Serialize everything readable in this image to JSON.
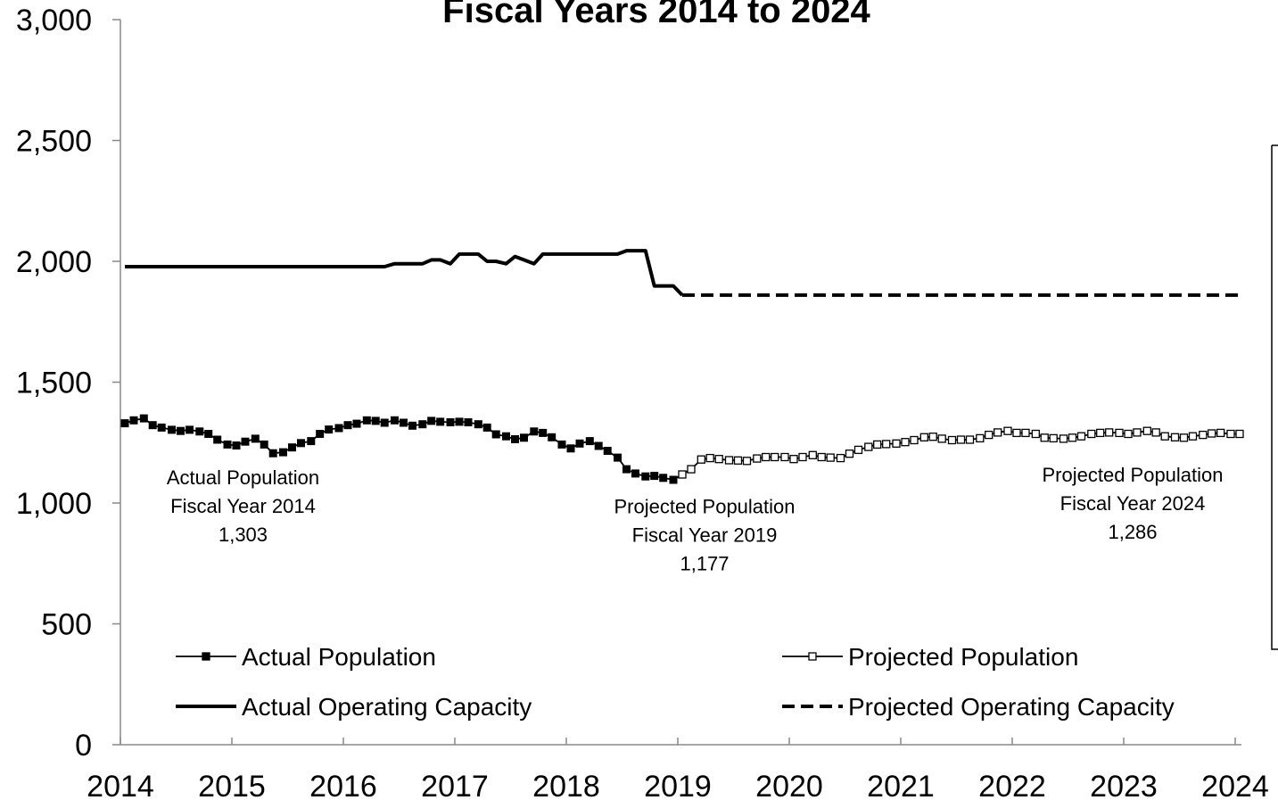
{
  "chart_data": {
    "type": "line",
    "title": "Fiscal Years 2014 to 2024",
    "xlabel": "",
    "ylabel": "",
    "xlim": [
      2014,
      2024
    ],
    "ylim": [
      0,
      3000
    ],
    "x_ticks": [
      "2014",
      "2015",
      "2016",
      "2017",
      "2018",
      "2019",
      "2020",
      "2021",
      "2022",
      "2023",
      "2024"
    ],
    "y_ticks": [
      "0",
      "500",
      "1,000",
      "1,500",
      "2,000",
      "2,500",
      "3,000"
    ],
    "grid": false,
    "legend_position": "bottom",
    "series": [
      {
        "name": "Actual Population",
        "style": "solid-filled-square",
        "color": "#000000",
        "points": [
          [
            2014.04,
            1330
          ],
          [
            2014.12,
            1342
          ],
          [
            2014.21,
            1350
          ],
          [
            2014.29,
            1322
          ],
          [
            2014.37,
            1312
          ],
          [
            2014.46,
            1303
          ],
          [
            2014.54,
            1298
          ],
          [
            2014.62,
            1303
          ],
          [
            2014.71,
            1296
          ],
          [
            2014.79,
            1286
          ],
          [
            2014.87,
            1262
          ],
          [
            2014.96,
            1242
          ],
          [
            2015.04,
            1238
          ],
          [
            2015.12,
            1254
          ],
          [
            2015.21,
            1266
          ],
          [
            2015.29,
            1242
          ],
          [
            2015.37,
            1206
          ],
          [
            2015.46,
            1210
          ],
          [
            2015.54,
            1230
          ],
          [
            2015.62,
            1248
          ],
          [
            2015.71,
            1256
          ],
          [
            2015.79,
            1286
          ],
          [
            2015.87,
            1304
          ],
          [
            2015.96,
            1310
          ],
          [
            2016.04,
            1322
          ],
          [
            2016.12,
            1328
          ],
          [
            2016.21,
            1342
          ],
          [
            2016.29,
            1340
          ],
          [
            2016.37,
            1332
          ],
          [
            2016.46,
            1342
          ],
          [
            2016.54,
            1332
          ],
          [
            2016.62,
            1320
          ],
          [
            2016.71,
            1326
          ],
          [
            2016.79,
            1340
          ],
          [
            2016.87,
            1336
          ],
          [
            2016.96,
            1334
          ],
          [
            2017.04,
            1336
          ],
          [
            2017.12,
            1334
          ],
          [
            2017.21,
            1326
          ],
          [
            2017.29,
            1312
          ],
          [
            2017.37,
            1284
          ],
          [
            2017.46,
            1276
          ],
          [
            2017.54,
            1264
          ],
          [
            2017.62,
            1270
          ],
          [
            2017.71,
            1296
          ],
          [
            2017.79,
            1290
          ],
          [
            2017.87,
            1272
          ],
          [
            2017.96,
            1242
          ],
          [
            2018.04,
            1226
          ],
          [
            2018.12,
            1246
          ],
          [
            2018.21,
            1256
          ],
          [
            2018.29,
            1236
          ],
          [
            2018.37,
            1216
          ],
          [
            2018.46,
            1188
          ],
          [
            2018.54,
            1140
          ],
          [
            2018.62,
            1122
          ],
          [
            2018.71,
            1110
          ],
          [
            2018.79,
            1112
          ],
          [
            2018.87,
            1104
          ],
          [
            2018.96,
            1096
          ],
          [
            2019.04,
            1118
          ]
        ]
      },
      {
        "name": "Projected Population",
        "style": "solid-hollow-square",
        "color": "#000000",
        "points": [
          [
            2019.04,
            1118
          ],
          [
            2019.12,
            1140
          ],
          [
            2019.21,
            1180
          ],
          [
            2019.29,
            1186
          ],
          [
            2019.37,
            1182
          ],
          [
            2019.46,
            1177
          ],
          [
            2019.54,
            1176
          ],
          [
            2019.62,
            1174
          ],
          [
            2019.71,
            1184
          ],
          [
            2019.79,
            1190
          ],
          [
            2019.87,
            1190
          ],
          [
            2019.96,
            1190
          ],
          [
            2020.04,
            1182
          ],
          [
            2020.12,
            1190
          ],
          [
            2020.21,
            1198
          ],
          [
            2020.29,
            1190
          ],
          [
            2020.37,
            1188
          ],
          [
            2020.46,
            1186
          ],
          [
            2020.54,
            1204
          ],
          [
            2020.62,
            1220
          ],
          [
            2020.71,
            1232
          ],
          [
            2020.79,
            1242
          ],
          [
            2020.87,
            1244
          ],
          [
            2020.96,
            1246
          ],
          [
            2021.04,
            1252
          ],
          [
            2021.12,
            1260
          ],
          [
            2021.21,
            1272
          ],
          [
            2021.29,
            1274
          ],
          [
            2021.37,
            1266
          ],
          [
            2021.46,
            1260
          ],
          [
            2021.54,
            1262
          ],
          [
            2021.62,
            1262
          ],
          [
            2021.71,
            1268
          ],
          [
            2021.79,
            1282
          ],
          [
            2021.87,
            1292
          ],
          [
            2021.96,
            1298
          ],
          [
            2022.04,
            1290
          ],
          [
            2022.12,
            1290
          ],
          [
            2022.21,
            1286
          ],
          [
            2022.29,
            1270
          ],
          [
            2022.37,
            1268
          ],
          [
            2022.46,
            1266
          ],
          [
            2022.54,
            1270
          ],
          [
            2022.62,
            1276
          ],
          [
            2022.71,
            1286
          ],
          [
            2022.79,
            1290
          ],
          [
            2022.87,
            1292
          ],
          [
            2022.96,
            1290
          ],
          [
            2023.04,
            1286
          ],
          [
            2023.12,
            1292
          ],
          [
            2023.21,
            1298
          ],
          [
            2023.29,
            1292
          ],
          [
            2023.37,
            1276
          ],
          [
            2023.46,
            1272
          ],
          [
            2023.54,
            1270
          ],
          [
            2023.62,
            1276
          ],
          [
            2023.71,
            1282
          ],
          [
            2023.79,
            1288
          ],
          [
            2023.87,
            1290
          ],
          [
            2023.96,
            1286
          ],
          [
            2024.04,
            1286
          ]
        ]
      },
      {
        "name": "Actual Operating Capacity",
        "style": "solid-thick",
        "color": "#000000",
        "points": [
          [
            2014.04,
            1978
          ],
          [
            2014.5,
            1978
          ],
          [
            2015.0,
            1978
          ],
          [
            2015.5,
            1978
          ],
          [
            2016.0,
            1978
          ],
          [
            2016.37,
            1978
          ],
          [
            2016.46,
            1990
          ],
          [
            2016.71,
            1990
          ],
          [
            2016.79,
            2006
          ],
          [
            2016.87,
            2006
          ],
          [
            2016.96,
            1990
          ],
          [
            2017.04,
            2030
          ],
          [
            2017.21,
            2030
          ],
          [
            2017.29,
            2000
          ],
          [
            2017.37,
            2000
          ],
          [
            2017.46,
            1990
          ],
          [
            2017.54,
            2020
          ],
          [
            2017.62,
            2006
          ],
          [
            2017.71,
            1990
          ],
          [
            2017.79,
            2030
          ],
          [
            2018.46,
            2030
          ],
          [
            2018.54,
            2044
          ],
          [
            2018.71,
            2044
          ],
          [
            2018.79,
            1898
          ],
          [
            2018.96,
            1898
          ],
          [
            2019.04,
            1860
          ]
        ]
      },
      {
        "name": "Projected Operating Capacity",
        "style": "dashed-thick",
        "color": "#000000",
        "points": [
          [
            2019.04,
            1860
          ],
          [
            2024.04,
            1860
          ]
        ]
      }
    ],
    "annotations": [
      {
        "lines": [
          "Actual Population",
          "Fiscal Year 2014",
          "1,303"
        ],
        "x": 2015.1,
        "y": 960
      },
      {
        "lines": [
          "Projected Population",
          "Fiscal Year 2019",
          "1,177"
        ],
        "x": 2019.24,
        "y": 840
      },
      {
        "lines": [
          "Projected Population",
          "Fiscal Year 2024",
          "1,286"
        ],
        "x": 2023.08,
        "y": 970
      }
    ]
  }
}
